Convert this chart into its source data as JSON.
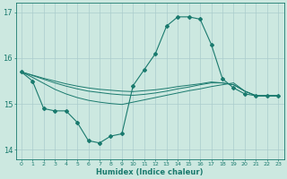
{
  "xlabel": "Humidex (Indice chaleur)",
  "xlim": [
    -0.5,
    23.5
  ],
  "ylim": [
    13.8,
    17.2
  ],
  "yticks": [
    14,
    15,
    16,
    17
  ],
  "xticks": [
    0,
    1,
    2,
    3,
    4,
    5,
    6,
    7,
    8,
    9,
    10,
    11,
    12,
    13,
    14,
    15,
    16,
    17,
    18,
    19,
    20,
    21,
    22,
    23
  ],
  "bg_color": "#cce8e0",
  "grid_color": "#aacccc",
  "line_color": "#1a7a6e",
  "lines": [
    {
      "x": [
        0,
        1,
        2,
        3,
        4,
        5,
        6,
        7,
        8,
        9,
        10,
        11,
        12,
        13,
        14,
        15,
        16,
        17,
        18,
        19,
        20,
        21,
        22,
        23
      ],
      "y": [
        15.7,
        15.5,
        14.9,
        14.85,
        14.85,
        14.6,
        14.2,
        14.15,
        14.3,
        14.35,
        15.4,
        15.75,
        16.1,
        16.7,
        16.9,
        16.9,
        16.85,
        16.3,
        15.55,
        15.35,
        15.22,
        15.18,
        15.18,
        15.18
      ],
      "marker": true
    },
    {
      "x": [
        0,
        1,
        2,
        3,
        4,
        5,
        6,
        7,
        8,
        9,
        10,
        11,
        12,
        13,
        14,
        15,
        16,
        17,
        18,
        19,
        20,
        21,
        22,
        23
      ],
      "y": [
        15.7,
        15.58,
        15.45,
        15.32,
        15.22,
        15.14,
        15.08,
        15.04,
        15.01,
        14.99,
        15.04,
        15.09,
        15.14,
        15.19,
        15.24,
        15.29,
        15.33,
        15.38,
        15.42,
        15.46,
        15.28,
        15.18,
        15.18,
        15.18
      ],
      "marker": false
    },
    {
      "x": [
        0,
        1,
        2,
        3,
        4,
        5,
        6,
        7,
        8,
        9,
        10,
        11,
        12,
        13,
        14,
        15,
        16,
        17,
        18,
        19,
        20,
        21,
        22,
        23
      ],
      "y": [
        15.7,
        15.62,
        15.54,
        15.46,
        15.39,
        15.33,
        15.28,
        15.25,
        15.22,
        15.2,
        15.19,
        15.21,
        15.24,
        15.28,
        15.33,
        15.37,
        15.42,
        15.46,
        15.46,
        15.42,
        15.28,
        15.18,
        15.18,
        15.18
      ],
      "marker": false
    },
    {
      "x": [
        0,
        1,
        2,
        3,
        4,
        5,
        6,
        7,
        8,
        9,
        10,
        11,
        12,
        13,
        14,
        15,
        16,
        17,
        18,
        19,
        20,
        21,
        22,
        23
      ],
      "y": [
        15.7,
        15.63,
        15.56,
        15.5,
        15.44,
        15.39,
        15.35,
        15.32,
        15.3,
        15.28,
        15.27,
        15.29,
        15.31,
        15.34,
        15.38,
        15.41,
        15.44,
        15.48,
        15.46,
        15.42,
        15.28,
        15.18,
        15.18,
        15.18
      ],
      "marker": false
    }
  ]
}
